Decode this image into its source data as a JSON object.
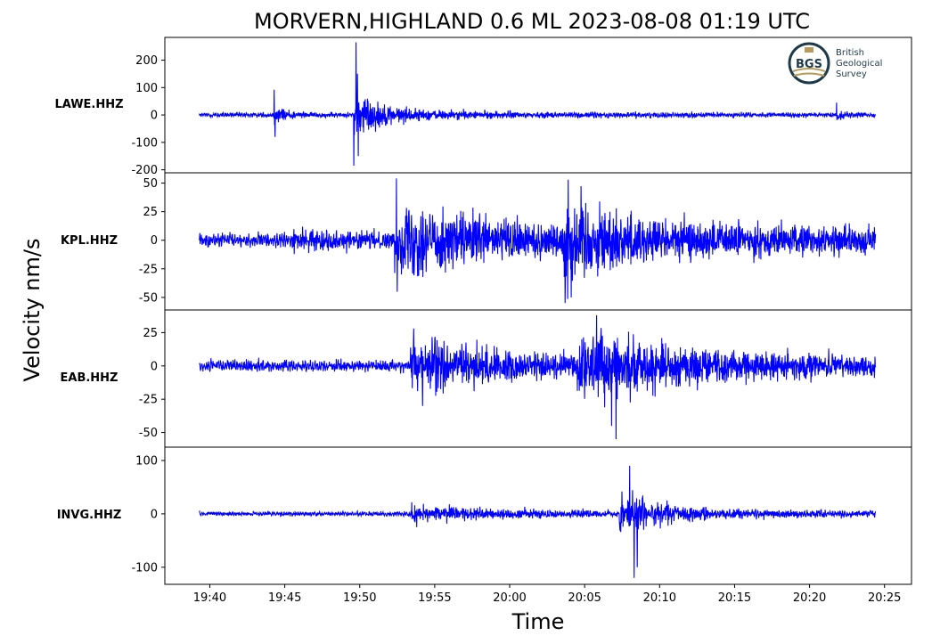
{
  "chart_data": {
    "type": "line",
    "title": "MORVERN,HIGHLAND 0.6 ML   2023-08-08 01:19 UTC",
    "xlabel": "Time",
    "ylabel": "Velocity nm/s",
    "time_unit": "minutes after 19:00",
    "xlim": [
      37.0,
      86.8
    ],
    "trace_span": [
      39.3,
      84.4
    ],
    "x_ticks": [
      {
        "t": 40,
        "label": "19:40"
      },
      {
        "t": 45,
        "label": "19:45"
      },
      {
        "t": 50,
        "label": "19:50"
      },
      {
        "t": 55,
        "label": "19:55"
      },
      {
        "t": 60,
        "label": "20:00"
      },
      {
        "t": 65,
        "label": "20:05"
      },
      {
        "t": 70,
        "label": "20:10"
      },
      {
        "t": 75,
        "label": "20:15"
      },
      {
        "t": 80,
        "label": "20:20"
      },
      {
        "t": 85,
        "label": "20:25"
      }
    ],
    "series_color": "#0000ff",
    "series": [
      {
        "name": "LAWE.HHZ",
        "ylim": [
          -211,
          283
        ],
        "y_ticks": [
          {
            "v": 200,
            "label": "200"
          },
          {
            "v": 100,
            "label": "100"
          },
          {
            "v": 0,
            "label": "0"
          },
          {
            "v": -100,
            "label": "-100"
          },
          {
            "v": -200,
            "label": "-200"
          }
        ],
        "noise": 5,
        "events": [
          {
            "t": 44.3,
            "amp": 25,
            "decay": 0.8
          },
          {
            "t": 49.6,
            "amp": 55,
            "decay": 1.2
          },
          {
            "t": 49.8,
            "amp": 18,
            "decay": 6
          },
          {
            "t": 81.8,
            "amp": 12,
            "decay": 0.4
          }
        ],
        "peaks": [
          {
            "t": 44.3,
            "v": 92
          },
          {
            "t": 44.35,
            "v": -80
          },
          {
            "t": 49.75,
            "v": 265
          },
          {
            "t": 49.6,
            "v": -185
          },
          {
            "t": 49.85,
            "v": 150
          },
          {
            "t": 49.9,
            "v": -150
          },
          {
            "t": 81.8,
            "v": 45
          }
        ]
      },
      {
        "name": "KPL.HHZ",
        "ylim": [
          -61,
          59
        ],
        "y_ticks": [
          {
            "v": 50,
            "label": "50"
          },
          {
            "v": 25,
            "label": "25"
          },
          {
            "v": 0,
            "label": "0"
          },
          {
            "v": -25,
            "label": "-25"
          },
          {
            "v": -50,
            "label": "-50"
          }
        ],
        "noise": 3.5,
        "events": [
          {
            "t": 45.5,
            "amp": 2.5,
            "decay": 8
          },
          {
            "t": 52.3,
            "amp": 14,
            "decay": 3
          },
          {
            "t": 53.0,
            "amp": 10,
            "decay": 25
          },
          {
            "t": 63.5,
            "amp": 20,
            "decay": 2
          },
          {
            "t": 64.5,
            "amp": 6,
            "decay": 12
          }
        ],
        "peaks": [
          {
            "t": 52.45,
            "v": 54
          },
          {
            "t": 52.5,
            "v": -45
          },
          {
            "t": 63.9,
            "v": 53
          },
          {
            "t": 63.7,
            "v": -55
          },
          {
            "t": 64.1,
            "v": -50
          }
        ]
      },
      {
        "name": "EAB.HHZ",
        "ylim": [
          -61,
          42
        ],
        "y_ticks": [
          {
            "v": 25,
            "label": "25"
          },
          {
            "v": 0,
            "label": "0"
          },
          {
            "v": -25,
            "label": "-25"
          },
          {
            "v": -50,
            "label": "-50"
          }
        ],
        "noise": 2.5,
        "events": [
          {
            "t": 53.3,
            "amp": 10,
            "decay": 3
          },
          {
            "t": 54.5,
            "amp": 6,
            "decay": 20
          },
          {
            "t": 64.5,
            "amp": 12,
            "decay": 4
          },
          {
            "t": 66,
            "amp": 5,
            "decay": 14
          }
        ],
        "peaks": [
          {
            "t": 53.6,
            "v": 28
          },
          {
            "t": 54.2,
            "v": -30
          },
          {
            "t": 65.8,
            "v": 38
          },
          {
            "t": 67.1,
            "v": -55
          },
          {
            "t": 66.8,
            "v": -45
          }
        ]
      },
      {
        "name": "INVG.HHZ",
        "ylim": [
          -132,
          125
        ],
        "y_ticks": [
          {
            "v": 100,
            "label": "100"
          },
          {
            "v": 0,
            "label": "0"
          },
          {
            "v": -100,
            "label": "-100"
          }
        ],
        "noise": 2.5,
        "events": [
          {
            "t": 53.4,
            "amp": 8,
            "decay": 3
          },
          {
            "t": 55,
            "amp": 4,
            "decay": 15
          },
          {
            "t": 67.3,
            "amp": 30,
            "decay": 1.6
          },
          {
            "t": 68,
            "amp": 8,
            "decay": 6
          }
        ],
        "peaks": [
          {
            "t": 68.3,
            "v": 112
          },
          {
            "t": 68.3,
            "v": -120
          },
          {
            "t": 68.0,
            "v": 90
          },
          {
            "t": 68.5,
            "v": -100
          },
          {
            "t": 53.8,
            "v": -25
          }
        ]
      }
    ]
  },
  "logo": {
    "initials": "BGS",
    "lines": [
      "British",
      "Geological",
      "Survey"
    ]
  }
}
